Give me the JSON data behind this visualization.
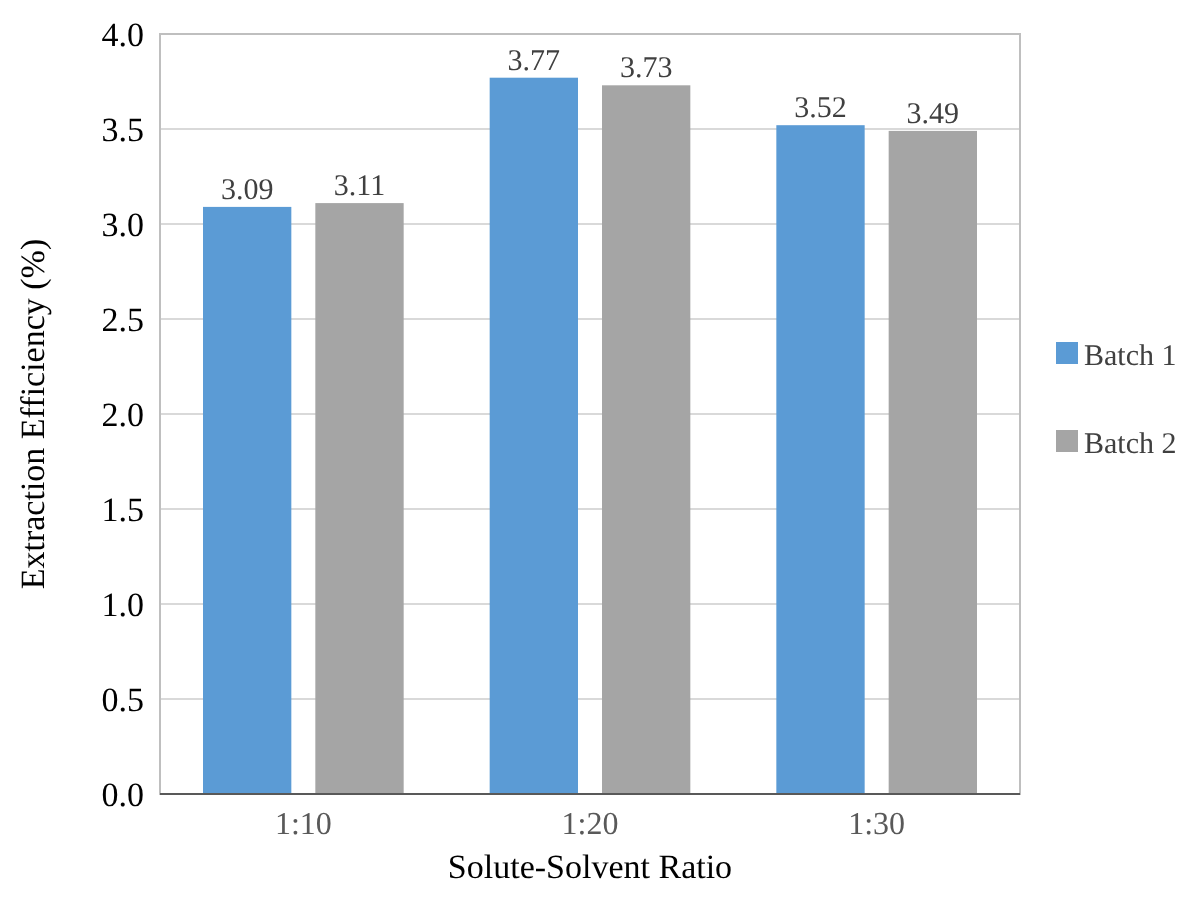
{
  "chart_data": {
    "type": "bar",
    "xlabel": "Solute-Solvent Ratio",
    "ylabel": "Extraction Efficiency (%)",
    "categories": [
      "1:10",
      "1:20",
      "1:30"
    ],
    "series": [
      {
        "name": "Batch 1",
        "color": "#5b9bd5",
        "values": [
          3.09,
          3.77,
          3.52
        ]
      },
      {
        "name": "Batch 2",
        "color": "#a5a5a5",
        "values": [
          3.11,
          3.73,
          3.49
        ]
      }
    ],
    "ylim": [
      0,
      4
    ],
    "yticks": [
      {
        "value": 0,
        "label": "0.0"
      },
      {
        "value": 0.5,
        "label": "0.5"
      },
      {
        "value": 1,
        "label": "1.0"
      },
      {
        "value": 1.5,
        "label": "1.5"
      },
      {
        "value": 2,
        "label": "2.0"
      },
      {
        "value": 2.5,
        "label": "2.5"
      },
      {
        "value": 3,
        "label": "3.0"
      },
      {
        "value": 3.5,
        "label": "3.5"
      },
      {
        "value": 4,
        "label": "4.0"
      }
    ],
    "grid": "y",
    "legend": "right",
    "data_labels": true
  }
}
